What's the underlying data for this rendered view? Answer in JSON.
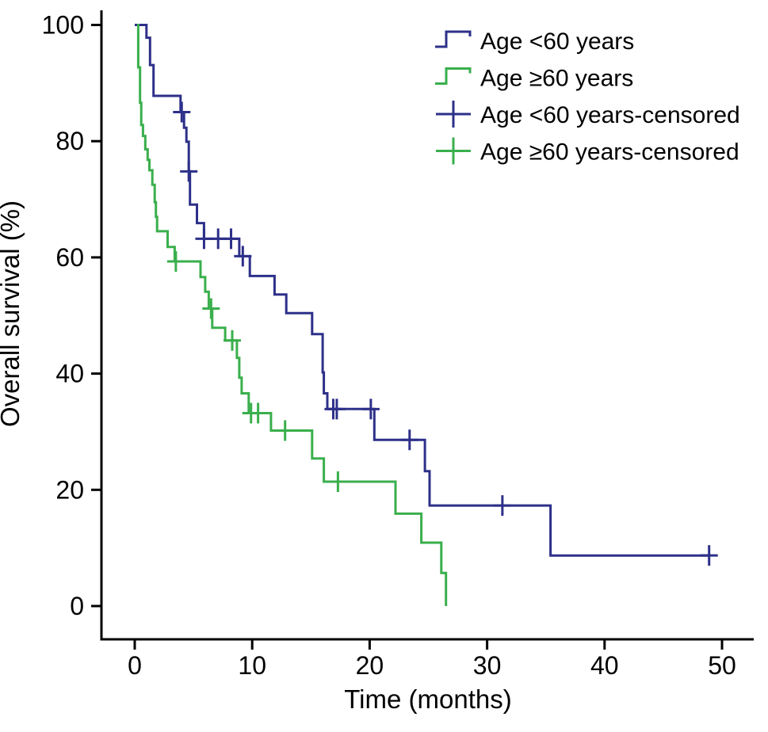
{
  "chart_data": {
    "type": "line",
    "subtype": "kaplan-meier-step",
    "title": "",
    "xlabel": "Time (months)",
    "ylabel": "Overall survival (%)",
    "xlim": [
      0,
      50
    ],
    "ylim": [
      0,
      100
    ],
    "x_ticks": [
      0,
      10,
      20,
      30,
      40,
      50
    ],
    "y_ticks": [
      0,
      20,
      40,
      60,
      80,
      100
    ],
    "grid": false,
    "legend_position": "top-right",
    "axis_color": "#000000",
    "series": [
      {
        "name": "Age <60 years",
        "color": "#2d3089",
        "events": [
          [
            0,
            100
          ],
          [
            1.0,
            97.8
          ],
          [
            1.3,
            93.1
          ],
          [
            1.6,
            87.8
          ],
          [
            3.9,
            85.0
          ],
          [
            4.2,
            82.3
          ],
          [
            4.4,
            79.9
          ],
          [
            4.6,
            74.8
          ],
          [
            4.7,
            69.1
          ],
          [
            5.3,
            65.9
          ],
          [
            5.9,
            63.2
          ],
          [
            8.9,
            60.2
          ],
          [
            9.8,
            56.8
          ],
          [
            11.9,
            53.6
          ],
          [
            12.9,
            50.4
          ],
          [
            15.1,
            46.8
          ],
          [
            16.0,
            40.2
          ],
          [
            16.1,
            36.6
          ],
          [
            16.4,
            33.9
          ],
          [
            20.4,
            28.6
          ],
          [
            24.7,
            23.2
          ],
          [
            25.1,
            17.3
          ],
          [
            35.4,
            8.7
          ],
          [
            48.9,
            8.7
          ]
        ],
        "censored": [
          [
            4.0,
            85.0
          ],
          [
            4.6,
            74.8
          ],
          [
            5.9,
            63.2
          ],
          [
            7.1,
            63.2
          ],
          [
            8.2,
            63.2
          ],
          [
            9.2,
            60.2
          ],
          [
            16.9,
            33.9
          ],
          [
            17.2,
            33.9
          ],
          [
            20.1,
            33.9
          ],
          [
            23.4,
            28.6
          ],
          [
            31.3,
            17.3
          ],
          [
            48.9,
            8.7
          ]
        ]
      },
      {
        "name": "Age ≥60 years",
        "color": "#3aaf4c",
        "events": [
          [
            0.2,
            100
          ],
          [
            0.3,
            92.7
          ],
          [
            0.45,
            86.6
          ],
          [
            0.55,
            82.8
          ],
          [
            0.7,
            80.9
          ],
          [
            0.9,
            78.6
          ],
          [
            1.1,
            76.8
          ],
          [
            1.25,
            75.0
          ],
          [
            1.5,
            72.5
          ],
          [
            1.7,
            69.5
          ],
          [
            1.8,
            67.0
          ],
          [
            1.9,
            64.5
          ],
          [
            2.8,
            61.8
          ],
          [
            3.4,
            59.3
          ],
          [
            5.6,
            56.6
          ],
          [
            6.0,
            54.1
          ],
          [
            6.3,
            51.2
          ],
          [
            6.6,
            47.9
          ],
          [
            7.7,
            45.7
          ],
          [
            8.7,
            42.7
          ],
          [
            8.9,
            39.3
          ],
          [
            9.1,
            36.6
          ],
          [
            9.7,
            33.2
          ],
          [
            11.6,
            30.2
          ],
          [
            15.1,
            25.4
          ],
          [
            16.1,
            21.4
          ],
          [
            22.2,
            15.9
          ],
          [
            24.4,
            10.9
          ],
          [
            26.1,
            5.7
          ],
          [
            26.5,
            0
          ]
        ],
        "censored": [
          [
            3.5,
            59.3
          ],
          [
            6.5,
            51.2
          ],
          [
            8.3,
            45.7
          ],
          [
            9.9,
            33.2
          ],
          [
            10.5,
            33.2
          ],
          [
            12.8,
            30.2
          ],
          [
            17.3,
            21.4
          ]
        ]
      }
    ],
    "legend": [
      {
        "label": "Age <60 years",
        "swatch": "step-line",
        "color": "#2d3089"
      },
      {
        "label": "Age ≥60 years",
        "swatch": "step-line",
        "color": "#3aaf4c"
      },
      {
        "label": "Age <60 years-censored",
        "swatch": "plus",
        "color": "#2d3089"
      },
      {
        "label": "Age ≥60 years-censored",
        "swatch": "plus",
        "color": "#3aaf4c"
      }
    ]
  }
}
